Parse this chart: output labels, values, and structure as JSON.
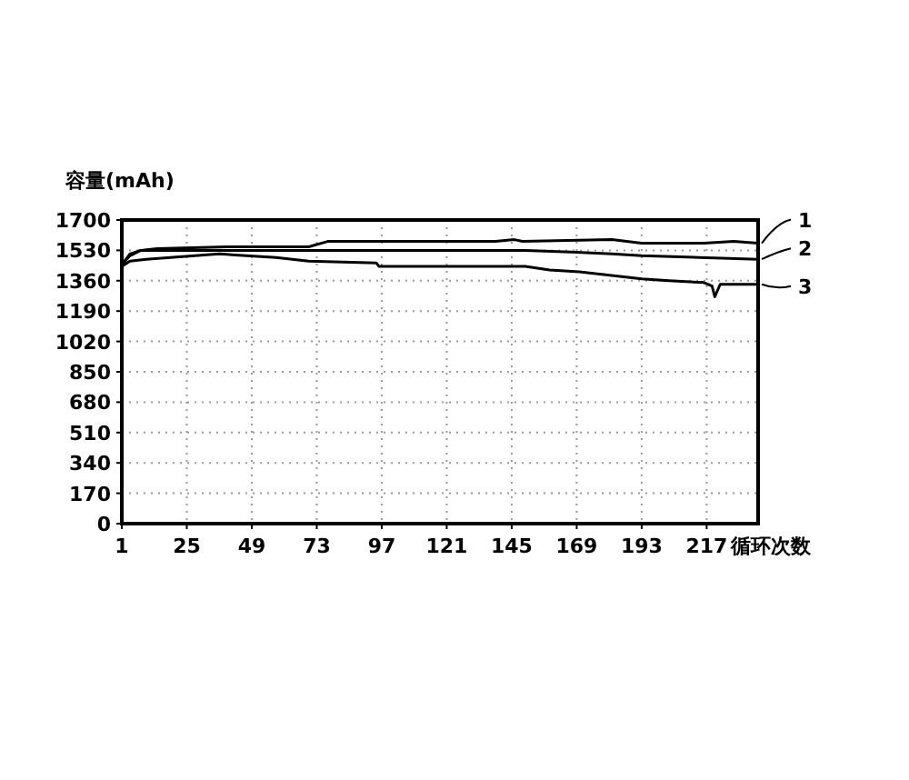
{
  "chart_data": {
    "type": "line",
    "ylabel": "容量(mAh)",
    "xlabel": "循环次数",
    "xlim": [
      1,
      236
    ],
    "ylim": [
      0,
      1700
    ],
    "xticks": [
      1,
      25,
      49,
      73,
      97,
      121,
      145,
      169,
      193,
      217
    ],
    "yticks": [
      0,
      170,
      340,
      510,
      680,
      850,
      1020,
      1190,
      1360,
      1530,
      1700
    ],
    "grid": true,
    "line_style": "solid",
    "marker": "none",
    "legend": "right",
    "series": [
      {
        "name": "1",
        "color": "#000000",
        "x": [
          1,
          4,
          8,
          14,
          40,
          70,
          77,
          104,
          117,
          139,
          146,
          149,
          182,
          193,
          216,
          227,
          236
        ],
        "values": [
          1450,
          1510,
          1530,
          1540,
          1550,
          1550,
          1580,
          1580,
          1580,
          1580,
          1590,
          1580,
          1590,
          1570,
          1570,
          1580,
          1570
        ]
      },
      {
        "name": "2",
        "color": "#000000",
        "x": [
          1,
          4,
          8,
          30,
          70,
          104,
          150,
          167,
          182,
          193,
          236
        ],
        "values": [
          1450,
          1500,
          1530,
          1530,
          1530,
          1530,
          1530,
          1520,
          1510,
          1500,
          1480
        ]
      },
      {
        "name": "3",
        "color": "#000000",
        "x": [
          1,
          4,
          10,
          37,
          47,
          58,
          70,
          95,
          96,
          130,
          150,
          159,
          170,
          193,
          203,
          216,
          219,
          220,
          222,
          236
        ],
        "values": [
          1440,
          1470,
          1480,
          1510,
          1500,
          1490,
          1470,
          1460,
          1440,
          1440,
          1440,
          1420,
          1410,
          1370,
          1360,
          1350,
          1330,
          1270,
          1340,
          1340
        ]
      }
    ]
  }
}
